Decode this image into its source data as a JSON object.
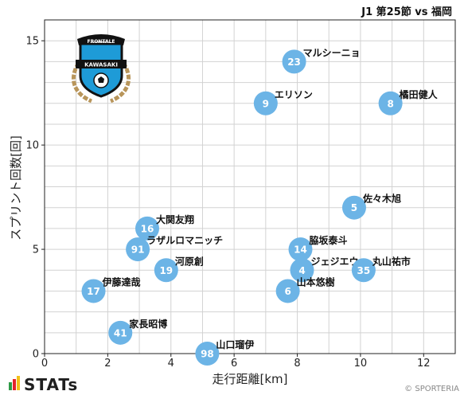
{
  "chart_data": {
    "type": "scatter",
    "title": "J1 第25節 vs 福岡",
    "xlabel": "走行距離[km]",
    "ylabel": "スプリント回数[回]",
    "xlim": [
      0,
      13
    ],
    "ylim": [
      0,
      16
    ],
    "xticks": [
      0,
      2,
      4,
      6,
      8,
      10,
      12
    ],
    "yticks": [
      0,
      5,
      10,
      15
    ],
    "grid": true,
    "marker_color": "#6cb4e6",
    "points": [
      {
        "number": "23",
        "name": "マルシーニョ",
        "x": 7.9,
        "y": 14
      },
      {
        "number": "9",
        "name": "エリソン",
        "x": 7.0,
        "y": 12
      },
      {
        "number": "8",
        "name": "橘田健人",
        "x": 10.95,
        "y": 12
      },
      {
        "number": "5",
        "name": "佐々木旭",
        "x": 9.8,
        "y": 7
      },
      {
        "number": "16",
        "name": "大関友翔",
        "x": 3.25,
        "y": 6
      },
      {
        "number": "91",
        "name": "ラザルロマニッチ",
        "x": 2.95,
        "y": 5
      },
      {
        "number": "14",
        "name": "脇坂泰斗",
        "x": 8.1,
        "y": 5
      },
      {
        "number": "19",
        "name": "河原創",
        "x": 3.85,
        "y": 4
      },
      {
        "number": "4",
        "name": "ジェジエウ",
        "x": 8.15,
        "y": 4
      },
      {
        "number": "35",
        "name": "丸山祐市",
        "x": 10.1,
        "y": 4
      },
      {
        "number": "17",
        "name": "伊藤達哉",
        "x": 1.55,
        "y": 3
      },
      {
        "number": "6",
        "name": "山本悠樹",
        "x": 7.7,
        "y": 3
      },
      {
        "number": "41",
        "name": "家長昭博",
        "x": 2.4,
        "y": 1
      },
      {
        "number": "98",
        "name": "山口瑠伊",
        "x": 5.15,
        "y": 0
      }
    ]
  },
  "logo": {
    "top_text": "FRONTALE",
    "club_text": "KAWASAKI",
    "colors": {
      "primary": "#1e9bd7",
      "secondary": "#111111",
      "gold": "#b8955a"
    }
  },
  "footer": {
    "brand": "STATs",
    "brand_colors": [
      "#2e9a46",
      "#e5242b",
      "#f3c017"
    ],
    "credit": "© SPORTERIA"
  }
}
